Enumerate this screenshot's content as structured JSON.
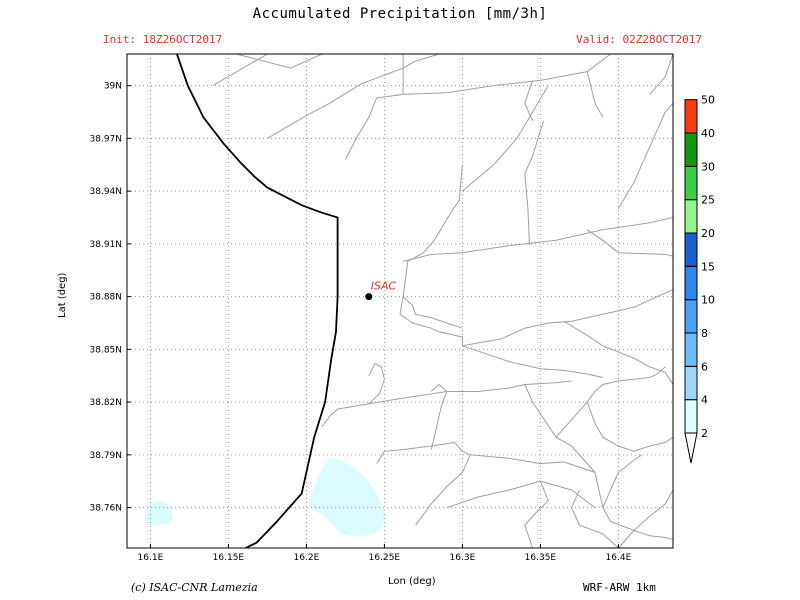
{
  "header": {
    "title": "Accumulated Precipitation [mm/3h]",
    "init": "Init: 18Z26OCT2017",
    "valid": "Valid: 02Z28OCT2017"
  },
  "map": {
    "station_label": "ISAC",
    "station": {
      "lon": 16.24,
      "lat": 38.88
    },
    "x_axis_label": "Lon (deg)",
    "y_axis_label": "Lat (deg)",
    "lon_range": [
      16.085,
      16.435
    ],
    "lat_range": [
      38.737,
      39.018
    ],
    "lon_ticks": [
      {
        "value": 16.1,
        "label": "16.1E"
      },
      {
        "value": 16.15,
        "label": "16.15E"
      },
      {
        "value": 16.2,
        "label": "16.2E"
      },
      {
        "value": 16.25,
        "label": "16.25E"
      },
      {
        "value": 16.3,
        "label": "16.3E"
      },
      {
        "value": 16.35,
        "label": "16.35E"
      },
      {
        "value": 16.4,
        "label": "16.4E"
      }
    ],
    "lat_ticks": [
      {
        "value": 39.0,
        "label": "39N"
      },
      {
        "value": 38.97,
        "label": "38.97N"
      },
      {
        "value": 38.94,
        "label": "38.94N"
      },
      {
        "value": 38.91,
        "label": "38.91N"
      },
      {
        "value": 38.88,
        "label": "38.88N"
      },
      {
        "value": 38.85,
        "label": "38.85N"
      },
      {
        "value": 38.82,
        "label": "38.82N"
      },
      {
        "value": 38.79,
        "label": "38.79N"
      },
      {
        "value": 38.76,
        "label": "38.76N"
      }
    ],
    "grid": true,
    "precip_areas": [
      {
        "level": "2-4",
        "color": "#dbfdff",
        "lons": [
          16.202,
          16.205,
          16.208,
          16.212,
          16.216,
          16.222,
          16.23,
          16.238,
          16.243,
          16.246,
          16.248,
          16.25,
          16.25,
          16.247,
          16.243,
          16.236,
          16.228,
          16.222,
          16.218,
          16.214,
          16.21,
          16.206,
          16.203
        ],
        "lats": [
          38.762,
          38.772,
          38.779,
          38.785,
          38.788,
          38.787,
          38.783,
          38.777,
          38.771,
          38.766,
          38.762,
          38.757,
          38.751,
          38.747,
          38.745,
          38.744,
          38.744,
          38.745,
          38.749,
          38.753,
          38.756,
          38.758,
          38.76
        ]
      },
      {
        "level": "2-4",
        "color": "#dbfdff",
        "lons": [
          16.096,
          16.099,
          16.104,
          16.11,
          16.113,
          16.115,
          16.112,
          16.104,
          16.098,
          16.096
        ],
        "lats": [
          38.753,
          38.762,
          38.764,
          38.763,
          38.759,
          38.754,
          38.751,
          38.75,
          38.75,
          38.753
        ]
      }
    ],
    "coastline": {
      "lons": [
        16.117,
        16.124,
        16.134,
        16.147,
        16.158,
        16.167,
        16.175,
        16.186,
        16.197,
        16.209,
        16.22,
        16.22,
        16.22,
        16.219,
        16.216,
        16.212,
        16.205,
        16.197,
        16.181,
        16.168,
        16.161
      ],
      "lats": [
        39.018,
        39.0,
        38.982,
        38.967,
        38.956,
        38.948,
        38.942,
        38.937,
        38.932,
        38.928,
        38.925,
        38.905,
        38.88,
        38.86,
        38.845,
        38.82,
        38.8,
        38.768,
        38.752,
        38.74,
        38.737
      ]
    },
    "roads": [
      {
        "lons": [
          16.14,
          16.175
        ],
        "lats": [
          39.0,
          39.018
        ]
      },
      {
        "lons": [
          16.155,
          16.19,
          16.21
        ],
        "lats": [
          39.018,
          39.01,
          39.018
        ]
      },
      {
        "lons": [
          16.175,
          16.2,
          16.215,
          16.235,
          16.25,
          16.262,
          16.27,
          16.285
        ],
        "lats": [
          38.97,
          38.983,
          38.99,
          39.001,
          39.006,
          39.01,
          39.014,
          39.018
        ]
      },
      {
        "lons": [
          16.225,
          16.232,
          16.24,
          16.245,
          16.262,
          16.262
        ],
        "lats": [
          38.958,
          38.97,
          38.982,
          38.993,
          38.995,
          39.018
        ]
      },
      {
        "lons": [
          16.262,
          16.29,
          16.32,
          16.35,
          16.38,
          16.395
        ],
        "lats": [
          38.995,
          38.996,
          39.0,
          39.003,
          39.008,
          39.018
        ]
      },
      {
        "lons": [
          16.345,
          16.34,
          16.345
        ],
        "lats": [
          39.003,
          38.99,
          38.98
        ]
      },
      {
        "lons": [
          16.38,
          16.385,
          16.39
        ],
        "lats": [
          39.008,
          38.99,
          38.982
        ]
      },
      {
        "lons": [
          16.42,
          16.43,
          16.435
        ],
        "lats": [
          38.995,
          39.005,
          39.018
        ]
      },
      {
        "lons": [
          16.4,
          16.41,
          16.42,
          16.43,
          16.435
        ],
        "lats": [
          38.93,
          38.945,
          38.965,
          38.985,
          38.99
        ]
      },
      {
        "lons": [
          16.3,
          16.32,
          16.335,
          16.345,
          16.355
        ],
        "lats": [
          38.94,
          38.955,
          38.97,
          38.985,
          39.0
        ]
      },
      {
        "lons": [
          16.3,
          16.298,
          16.29,
          16.282,
          16.275,
          16.265,
          16.262
        ],
        "lats": [
          38.955,
          38.935,
          38.924,
          38.912,
          38.905,
          38.9,
          38.88
        ]
      },
      {
        "lons": [
          16.262,
          16.28,
          16.3,
          16.33,
          16.36,
          16.39,
          16.42,
          16.435
        ],
        "lats": [
          38.9,
          38.904,
          38.905,
          38.909,
          38.912,
          38.918,
          38.922,
          38.925
        ]
      },
      {
        "lons": [
          16.343,
          16.342,
          16.34,
          16.345,
          16.352
        ],
        "lats": [
          38.909,
          38.93,
          38.95,
          38.96,
          38.98
        ]
      },
      {
        "lons": [
          16.38,
          16.39,
          16.4,
          16.43,
          16.435
        ],
        "lats": [
          38.918,
          38.912,
          38.905,
          38.904,
          38.903
        ]
      },
      {
        "lons": [
          16.262,
          16.26,
          16.268,
          16.28,
          16.285,
          16.3,
          16.3
        ],
        "lats": [
          38.88,
          38.87,
          38.865,
          38.862,
          38.86,
          38.857,
          38.852
        ]
      },
      {
        "lons": [
          16.262,
          16.268,
          16.27,
          16.28,
          16.29,
          16.3
        ],
        "lats": [
          38.88,
          38.875,
          38.87,
          38.868,
          38.865,
          38.862
        ]
      },
      {
        "lons": [
          16.3,
          16.325,
          16.34,
          16.355,
          16.37,
          16.39,
          16.4,
          16.41,
          16.42,
          16.435
        ],
        "lats": [
          38.852,
          38.856,
          38.862,
          38.865,
          38.866,
          38.87,
          38.872,
          38.874,
          38.878,
          38.884
        ]
      },
      {
        "lons": [
          16.3,
          16.33,
          16.35,
          16.365,
          16.38,
          16.39
        ],
        "lats": [
          38.852,
          38.843,
          38.839,
          38.838,
          38.836,
          38.834
        ]
      },
      {
        "lons": [
          16.365,
          16.38,
          16.39,
          16.41,
          16.42,
          16.43,
          16.435
        ],
        "lats": [
          38.866,
          38.858,
          38.852,
          38.845,
          38.84,
          38.837,
          38.83
        ]
      },
      {
        "lons": [
          16.24,
          16.247,
          16.25,
          16.248,
          16.244,
          16.24
        ],
        "lats": [
          38.819,
          38.825,
          38.833,
          38.84,
          38.842,
          38.835
        ]
      },
      {
        "lons": [
          16.21,
          16.215,
          16.22,
          16.24,
          16.26,
          16.29,
          16.31,
          16.33,
          16.34,
          16.36,
          16.37
        ],
        "lats": [
          38.806,
          38.812,
          38.816,
          38.819,
          38.822,
          38.826,
          38.826,
          38.828,
          38.83,
          38.831,
          38.832
        ]
      },
      {
        "lons": [
          16.28,
          16.282,
          16.285,
          16.287,
          16.29,
          16.285,
          16.28
        ],
        "lats": [
          38.793,
          38.8,
          38.812,
          38.819,
          38.826,
          38.83,
          38.826
        ]
      },
      {
        "lons": [
          16.34,
          16.345,
          16.36,
          16.37,
          16.385,
          16.39
        ],
        "lats": [
          38.83,
          38.82,
          38.8,
          38.795,
          38.78,
          38.76
        ]
      },
      {
        "lons": [
          16.36,
          16.37,
          16.38,
          16.385,
          16.39,
          16.4,
          16.41,
          16.42,
          16.425,
          16.43
        ],
        "lats": [
          38.8,
          38.81,
          38.82,
          38.826,
          38.83,
          38.832,
          38.833,
          38.834,
          38.836,
          38.84
        ]
      },
      {
        "lons": [
          16.38,
          16.385,
          16.39,
          16.4,
          16.41
        ],
        "lats": [
          38.82,
          38.808,
          38.8,
          38.795,
          38.792
        ]
      },
      {
        "lons": [
          16.39,
          16.395,
          16.4,
          16.41,
          16.415
        ],
        "lats": [
          38.76,
          38.77,
          38.78,
          38.787,
          38.79
        ]
      },
      {
        "lons": [
          16.245,
          16.25,
          16.262,
          16.28,
          16.295,
          16.3,
          16.305,
          16.33,
          16.35
        ],
        "lats": [
          38.785,
          38.792,
          38.793,
          38.795,
          38.797,
          38.792,
          38.79,
          38.788,
          38.785
        ]
      },
      {
        "lons": [
          16.35,
          16.365,
          16.385
        ],
        "lats": [
          38.785,
          38.786,
          38.78
        ]
      },
      {
        "lons": [
          16.29,
          16.31,
          16.33,
          16.35,
          16.37,
          16.385
        ],
        "lats": [
          38.76,
          38.766,
          38.77,
          38.775,
          38.77,
          38.76
        ]
      },
      {
        "lons": [
          16.35,
          16.355,
          16.345,
          16.34,
          16.345
        ],
        "lats": [
          38.775,
          38.764,
          38.755,
          38.75,
          38.737
        ]
      },
      {
        "lons": [
          16.375,
          16.37,
          16.375,
          16.39,
          16.4
        ],
        "lats": [
          38.77,
          38.76,
          38.75,
          38.745,
          38.737
        ]
      },
      {
        "lons": [
          16.4,
          16.41,
          16.42,
          16.43,
          16.435
        ],
        "lats": [
          38.737,
          38.747,
          38.755,
          38.762,
          38.77
        ]
      },
      {
        "lons": [
          16.305,
          16.3,
          16.29,
          16.28,
          16.27
        ],
        "lats": [
          38.79,
          38.78,
          38.772,
          38.762,
          38.75
        ]
      },
      {
        "lons": [
          16.41,
          16.42,
          16.43,
          16.435
        ],
        "lats": [
          38.792,
          38.795,
          38.797,
          38.8
        ]
      },
      {
        "lons": [
          16.39,
          16.395,
          16.41,
          16.42,
          16.43,
          16.435
        ],
        "lats": [
          38.76,
          38.752,
          38.747,
          38.744,
          38.743,
          38.742
        ]
      }
    ]
  },
  "colorbar": {
    "levels": [
      "2",
      "4",
      "6",
      "8",
      "10",
      "15",
      "20",
      "25",
      "30",
      "40",
      "50"
    ],
    "colors": [
      "#ddfeff",
      "#9fd6fb",
      "#6ebaf7",
      "#4b9ff4",
      "#2f86ef",
      "#1a60cc",
      "#94f58d",
      "#3ccc46",
      "#149814",
      "#fb3b10",
      "#a3a3a3"
    ],
    "low_tip_color": "#ffffff",
    "high_tip_color": "#a3a3a3"
  },
  "footer": {
    "credit": "(c) ISAC-CNR Lamezia",
    "model": "WRF-ARW 1km"
  }
}
